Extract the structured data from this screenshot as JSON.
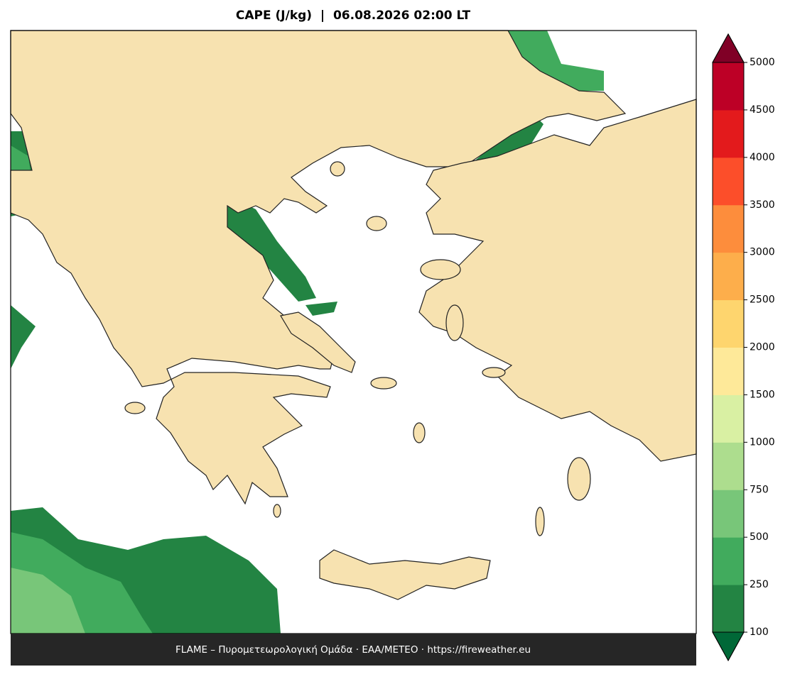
{
  "header": {
    "title": "CAPE (J/kg)  |  06.08.2026 02:00 LT"
  },
  "colorbar": {
    "levels": [
      100,
      250,
      500,
      750,
      1000,
      1500,
      2000,
      2500,
      3000,
      3500,
      4000,
      4500,
      5000
    ],
    "colors": [
      "#238443",
      "#41ab5d",
      "#78c679",
      "#addd8e",
      "#d9f0a3",
      "#fee999",
      "#fed56e",
      "#fdae4b",
      "#fd8d3c",
      "#fc4e2a",
      "#e31a1c",
      "#bd0026"
    ],
    "under_color": "#006837",
    "over_color": "#800026"
  },
  "footer": {
    "text": "FLAME – Πυρομετεωρολογική Ομάδα · ΕΑΑ/METEO · https://fireweather.eu"
  }
}
